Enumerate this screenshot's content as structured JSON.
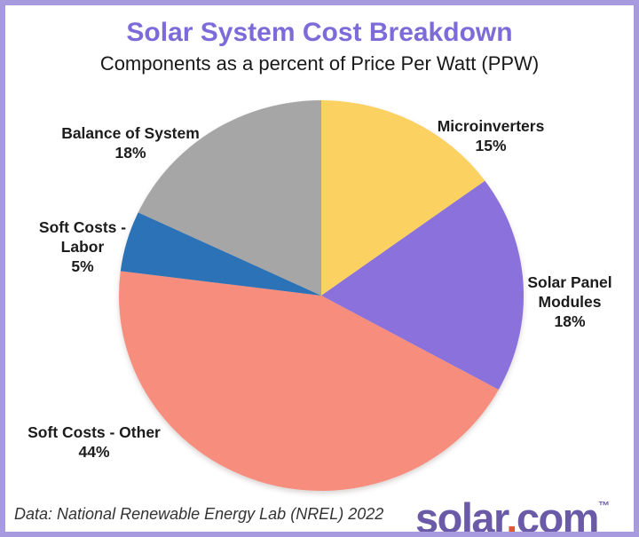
{
  "header": {
    "title": "Solar System Cost Breakdown",
    "subtitle": "Components as a percent of Price Per Watt (PPW)",
    "title_color": "#7c6bd9"
  },
  "chart_data": {
    "type": "pie",
    "title": "Solar System Cost Breakdown",
    "subtitle": "Components as a percent of Price Per Watt (PPW)",
    "start_angle_deg": 0,
    "direction": "clockwise",
    "labels_position": "outside",
    "legend": "none",
    "slices": [
      {
        "label": "Microinverters",
        "value_pct": 15,
        "color": "#fbd262",
        "label_lines": [
          "Microinverters",
          "15%"
        ]
      },
      {
        "label": "Solar Panel Modules",
        "value_pct": 18,
        "color": "#8a71db",
        "label_lines": [
          "Solar Panel",
          "Modules",
          "18%"
        ]
      },
      {
        "label": "Soft Costs - Other",
        "value_pct": 44,
        "color": "#f78e7d",
        "label_lines": [
          "Soft Costs - Other",
          "44%"
        ]
      },
      {
        "label": "Soft Costs - Labor",
        "value_pct": 5,
        "color": "#2c72b7",
        "label_lines": [
          "Soft Costs -",
          "Labor",
          "5%"
        ]
      },
      {
        "label": "Balance of System",
        "value_pct": 18,
        "color": "#a6a6a7",
        "label_lines": [
          "Balance of System",
          "18%"
        ]
      }
    ]
  },
  "footer": {
    "source": "Data: National Renewable Energy Lab (NREL) 2022",
    "logo": {
      "part1": "solar",
      "dot": ".",
      "part2": "com",
      "tm": "™",
      "text_color": "#6a5aa8",
      "dot_color": "#dc5a3b"
    }
  },
  "frame": {
    "border_color": "#a79ade",
    "background": "#ffffff"
  }
}
